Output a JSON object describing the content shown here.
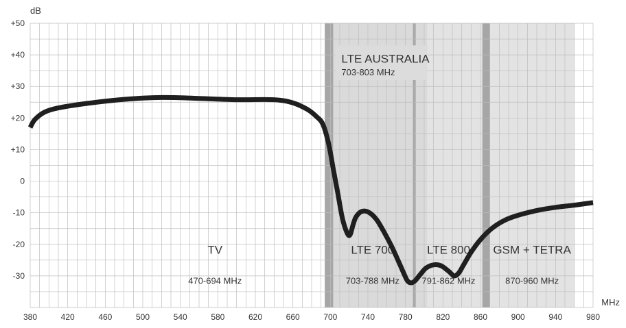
{
  "chart_data": {
    "type": "line",
    "ylabel": "dB",
    "xlabel": "MHz",
    "xlim": [
      380,
      980
    ],
    "ylim": [
      -40,
      50
    ],
    "x_ticks": [
      380,
      420,
      460,
      500,
      540,
      580,
      620,
      660,
      700,
      740,
      780,
      820,
      860,
      900,
      940,
      980
    ],
    "y_ticks": [
      50,
      40,
      30,
      20,
      10,
      0,
      -10,
      -20,
      -30
    ],
    "y_tick_labels": [
      "+50",
      "+40",
      "+30",
      "+20",
      "+10",
      "0",
      "-10",
      "-20",
      "-30"
    ],
    "grid": true,
    "band_shading": [
      {
        "from": 694,
        "to": 960,
        "color": "#e3e3e3"
      },
      {
        "from": 694,
        "to": 703,
        "color": "#a6a6a6"
      },
      {
        "from": 703,
        "to": 803,
        "color": "#dadada"
      },
      {
        "from": 788,
        "to": 791,
        "color": "#a6a6a6"
      },
      {
        "from": 862,
        "to": 870,
        "color": "#a6a6a6"
      }
    ],
    "annotations": [
      {
        "title": "TV",
        "range": "470-694 MHz",
        "x": 577
      },
      {
        "title": "LTE 700",
        "range": "703-788 MHz",
        "x": 745
      },
      {
        "title": "LTE 800",
        "range": "791-862 MHz",
        "x": 826
      },
      {
        "title": "GSM + TETRA",
        "range": "870-960 MHz",
        "x": 915
      },
      {
        "title": "LTE AUSTRALIA",
        "range": "703-803 MHz",
        "x": 703,
        "style": "box"
      }
    ],
    "series": [
      {
        "color": "#1f1f1f",
        "x": [
          380,
          385,
          395,
          410,
          440,
          480,
          520,
          560,
          600,
          640,
          660,
          675,
          685,
          692,
          698,
          703,
          708,
          713,
          718,
          721,
          724,
          727,
          732,
          738,
          744,
          750,
          757,
          765,
          772,
          778,
          782,
          786,
          790,
          796,
          802,
          810,
          818,
          826,
          832,
          837,
          842,
          850,
          860,
          872,
          885,
          900,
          920,
          940,
          960,
          980
        ],
        "y": [
          17,
          19.5,
          21.8,
          23.2,
          24.6,
          25.9,
          26.5,
          26.2,
          25.8,
          25.8,
          24.8,
          22.8,
          20.5,
          18,
          12,
          4,
          -4,
          -12,
          -16.5,
          -17,
          -14,
          -11.5,
          -9.8,
          -9.5,
          -10.5,
          -12.5,
          -16,
          -20.5,
          -25,
          -29,
          -31.5,
          -32.2,
          -31.6,
          -29.5,
          -27.5,
          -26.5,
          -26.8,
          -28.5,
          -30,
          -29,
          -26.5,
          -22.5,
          -18.5,
          -15,
          -12.5,
          -10.8,
          -9.3,
          -8.3,
          -7.6,
          -6.8
        ]
      }
    ]
  }
}
